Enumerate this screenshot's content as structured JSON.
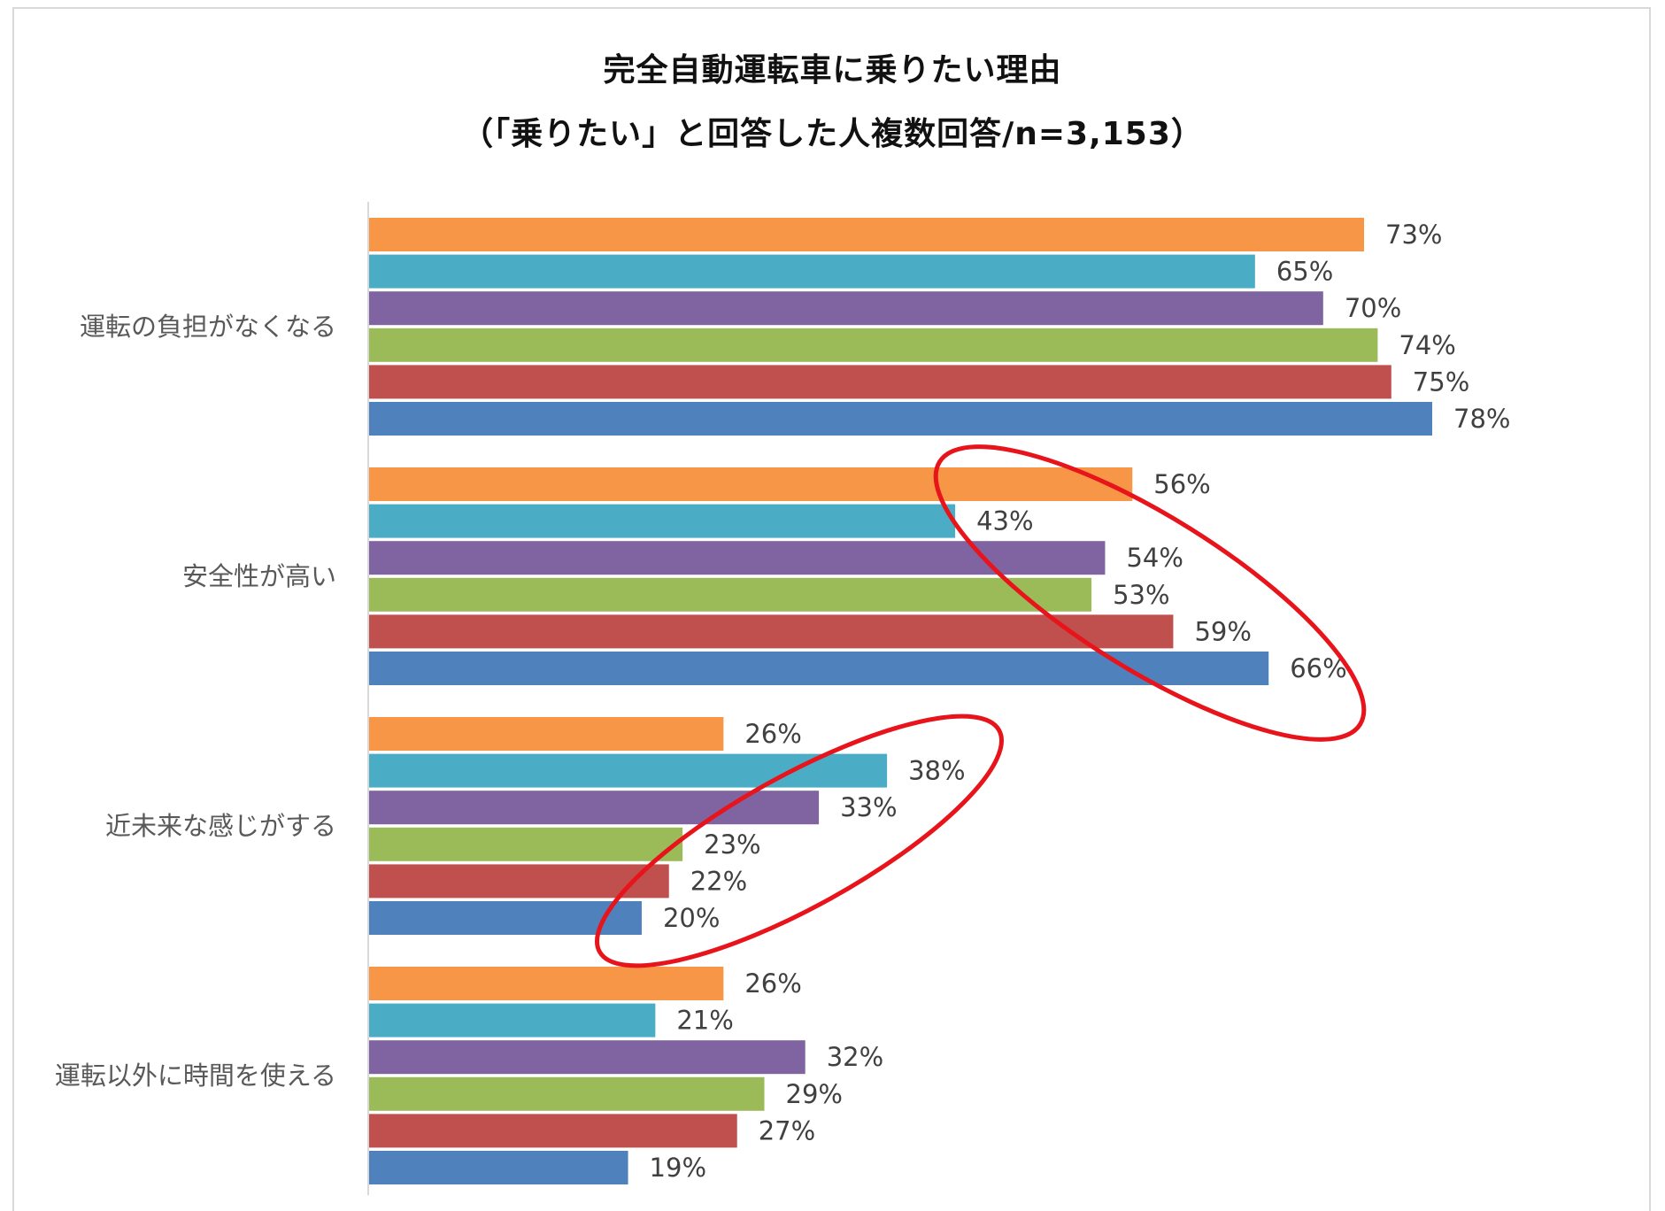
{
  "chart_data": {
    "type": "bar",
    "orientation": "horizontal",
    "title": "完全自動運転車に乗りたい理由",
    "subtitle": "（「乗りたい」と回答した人複数回答/n=3,153）",
    "categories": [
      "運転の負担がなくなる",
      "安全性が高い",
      "近未来な感じがする",
      "運転以外に時間を使える"
    ],
    "series": [
      {
        "color": "#F79646",
        "values": [
          73,
          56,
          26,
          26
        ]
      },
      {
        "color": "#4BACC6",
        "values": [
          65,
          43,
          38,
          21
        ]
      },
      {
        "color": "#8064A2",
        "values": [
          70,
          54,
          33,
          32
        ]
      },
      {
        "color": "#9BBB59",
        "values": [
          74,
          53,
          23,
          29
        ]
      },
      {
        "color": "#C0504D",
        "values": [
          75,
          59,
          22,
          27
        ]
      },
      {
        "color": "#4F81BD",
        "values": [
          78,
          66,
          20,
          19
        ]
      }
    ],
    "value_suffix": "%",
    "xlim": [
      0,
      100
    ],
    "xaxis_visible": false,
    "grid": false,
    "legend": "none",
    "annotations": [
      {
        "shape": "ellipse",
        "color": "#E8141B",
        "encircles": "安全性が高い"
      },
      {
        "shape": "ellipse",
        "color": "#E8141B",
        "encircles": "近未来な感じがする"
      }
    ]
  }
}
